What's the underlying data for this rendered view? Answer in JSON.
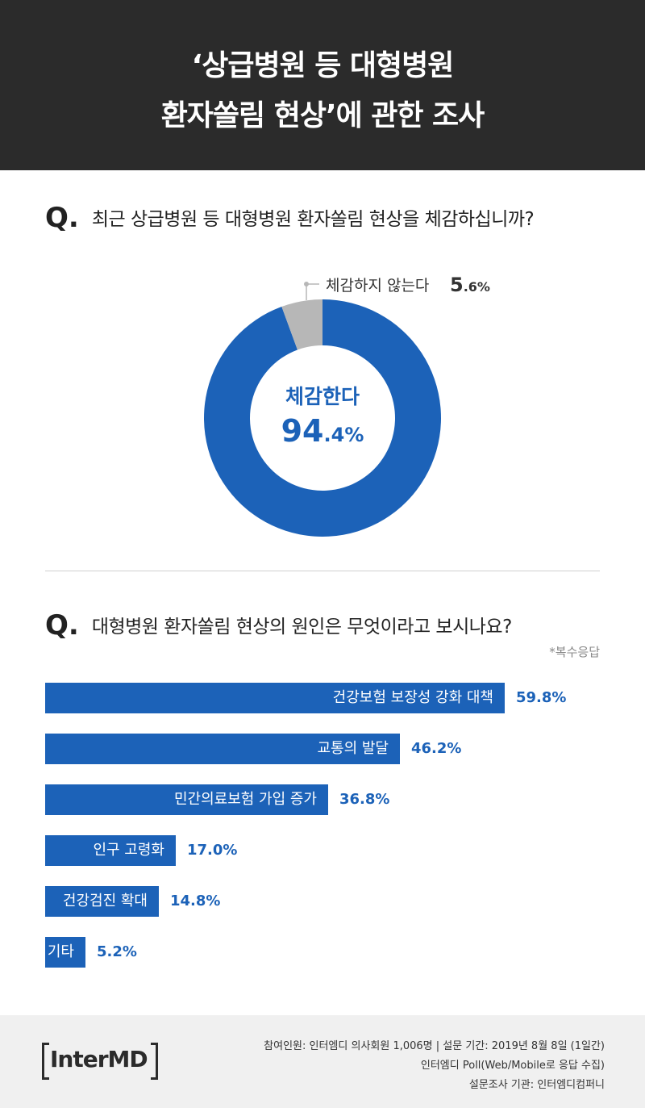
{
  "header": {
    "title_line1": "‘상급병원 등 대형병원",
    "title_line2": "환자쏠림 현상’에 관한 조사"
  },
  "q_mark": "Q.",
  "q1": {
    "question": "최근 상급병원 등 대형병원 환자쏠림 현상을 체감하십니까?"
  },
  "q2": {
    "question": "대형병원 환자쏠림 현상의 원인은 무엇이라고 보시나요?",
    "note": "*복수응답"
  },
  "chart_data": [
    {
      "type": "pie",
      "categories": [
        "체감한다",
        "체감하지 않는다"
      ],
      "values": [
        94.4,
        5.6
      ],
      "value_labels": [
        {
          "int": "94",
          "dec": ".4%"
        },
        {
          "int": "5",
          "dec": ".6%"
        }
      ],
      "colors": [
        "#1c62b8",
        "#b7b7b7"
      ],
      "donut": true
    },
    {
      "type": "bar",
      "orientation": "horizontal",
      "categories": [
        "건강보험 보장성 강화 대책",
        "교통의 발달",
        "민간의료보험 가입 증가",
        "인구 고령화",
        "건강검진 확대",
        "기타"
      ],
      "values": [
        59.8,
        46.2,
        36.8,
        17.0,
        14.8,
        5.2
      ],
      "value_labels": [
        "59.8%",
        "46.2%",
        "36.8%",
        "17.0%",
        "14.8%",
        "5.2%"
      ],
      "color": "#1c62b8"
    }
  ],
  "footer": {
    "logo": "InterMD",
    "line1": "참여인원: 인터엠디 의사회원 1,006명  |  설문 기간: 2019년 8월 8일 (1일간)",
    "line2": "인터엠디 Poll(Web/Mobile로 응답 수집)",
    "line3": "설문조사 기관: 인터엠디컴퍼니"
  }
}
